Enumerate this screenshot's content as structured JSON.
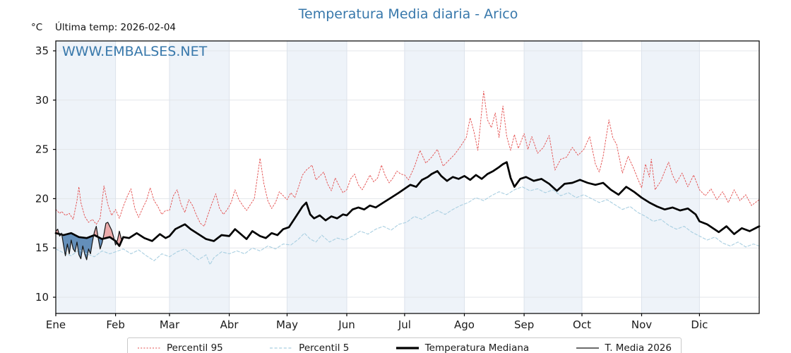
{
  "header": {
    "title": "Temperatura Media diaria - Arico",
    "units_label": "°C",
    "last_temp_label": "Última temp: 2026-02-04",
    "watermark": "WWW.EMBALSES.NET"
  },
  "colors": {
    "accent": "#3878ab",
    "p95": "#e34b4b",
    "p5": "#a9cfe1",
    "median": "#000000",
    "t2026": "#151515",
    "fill_above": "#ecacac",
    "fill_below": "#648fba",
    "band": "#eef3f9"
  },
  "legend": {
    "items": [
      {
        "label": "Percentil 95",
        "style": "red-dotted"
      },
      {
        "label": "Percentil 5",
        "style": "blue-dashed"
      },
      {
        "label": "Temperatura Mediana",
        "style": "black-thick"
      },
      {
        "label": "T. Media 2026",
        "style": "black-thin"
      }
    ]
  },
  "chart_data": {
    "type": "line",
    "title": "Temperatura Media diaria - Arico",
    "xlabel": "",
    "ylabel": "°C",
    "x_unit": "day_of_year",
    "xlim": [
      0,
      365
    ],
    "ylim": [
      8.35,
      36.0
    ],
    "y_ticks": [
      10,
      15,
      20,
      25,
      30,
      35
    ],
    "grid": true,
    "grid_color_h": "#e3e6e9",
    "grid_color_v": "#dce3ec",
    "band_color": "#eef3f9",
    "legend_position": "bottom",
    "months": [
      {
        "label": "Ene",
        "start": 0
      },
      {
        "label": "Feb",
        "start": 31
      },
      {
        "label": "Mar",
        "start": 59
      },
      {
        "label": "Abr",
        "start": 90
      },
      {
        "label": "May",
        "start": 120
      },
      {
        "label": "Jun",
        "start": 151
      },
      {
        "label": "Jul",
        "start": 181
      },
      {
        "label": "Ago",
        "start": 212
      },
      {
        "label": "Sep",
        "start": 243
      },
      {
        "label": "Oct",
        "start": 273
      },
      {
        "label": "Nov",
        "start": 304
      },
      {
        "label": "Dic",
        "start": 334
      }
    ],
    "fill": {
      "between": [
        "Temperatura Mediana",
        "T. Media 2026"
      ],
      "above_color": "#ecacac",
      "below_color": "#648fba"
    },
    "series": [
      {
        "id": "p95",
        "name": "Percentil 95",
        "color": "#e34b4b",
        "width": 0.9,
        "dash": "2 2.2",
        "days": [
          0,
          2,
          3,
          5,
          7,
          9,
          11,
          12,
          13,
          15,
          17,
          19,
          21,
          23,
          25,
          27,
          29,
          31,
          33,
          35,
          37,
          39,
          41,
          43,
          45,
          47,
          49,
          51,
          53,
          55,
          57,
          59,
          61,
          63,
          65,
          67,
          69,
          71,
          73,
          75,
          77,
          79,
          81,
          83,
          85,
          87,
          89,
          91,
          93,
          95,
          97,
          99,
          101,
          103,
          106,
          108,
          110,
          112,
          114,
          116,
          118,
          120,
          122,
          124,
          126,
          128,
          130,
          133,
          135,
          137,
          139,
          141,
          143,
          145,
          147,
          149,
          151,
          153,
          155,
          157,
          159,
          161,
          163,
          165,
          167,
          169,
          171,
          173,
          175,
          177,
          179,
          181,
          183,
          186,
          189,
          192,
          195,
          198,
          201,
          204,
          207,
          210,
          213,
          215,
          217,
          219,
          222,
          224,
          226,
          228,
          230,
          232,
          234,
          236,
          238,
          240,
          243,
          245,
          247,
          250,
          253,
          256,
          259,
          262,
          265,
          268,
          271,
          274,
          277,
          280,
          282,
          284,
          287,
          289,
          291,
          294,
          297,
          300,
          302,
          304,
          306,
          308,
          309,
          311,
          314,
          316,
          318,
          320,
          322,
          325,
          328,
          331,
          334,
          337,
          340,
          343,
          346,
          349,
          352,
          355,
          358,
          361,
          365
        ],
        "values": [
          18.9,
          18.5,
          18.7,
          18.3,
          18.5,
          17.9,
          19.8,
          21.2,
          19.6,
          18.2,
          17.6,
          17.9,
          17.4,
          18.0,
          21.3,
          19.4,
          18.3,
          18.9,
          18.0,
          19.2,
          20.2,
          21.0,
          19.0,
          18.1,
          19.0,
          19.8,
          21.1,
          19.8,
          19.2,
          18.4,
          18.8,
          18.8,
          20.3,
          20.9,
          19.4,
          18.6,
          19.9,
          19.3,
          18.3,
          17.5,
          17.2,
          18.4,
          19.5,
          20.5,
          19.0,
          18.4,
          18.9,
          19.6,
          20.9,
          19.9,
          19.3,
          18.8,
          19.4,
          20.0,
          24.1,
          21.5,
          19.8,
          19.0,
          19.6,
          20.7,
          20.3,
          19.9,
          20.6,
          20.1,
          21.2,
          22.4,
          22.9,
          23.4,
          21.9,
          22.3,
          22.7,
          21.5,
          20.8,
          22.1,
          21.3,
          20.6,
          20.9,
          22.0,
          22.5,
          21.4,
          20.9,
          21.6,
          22.4,
          21.7,
          22.1,
          23.4,
          22.3,
          21.6,
          22.1,
          22.8,
          22.5,
          22.4,
          21.9,
          23.2,
          24.9,
          23.6,
          24.2,
          25.0,
          23.3,
          23.9,
          24.5,
          25.3,
          26.2,
          28.2,
          26.8,
          24.9,
          30.9,
          28.0,
          27.2,
          28.7,
          26.2,
          29.4,
          26.3,
          24.9,
          26.5,
          25.1,
          26.6,
          25.0,
          26.3,
          24.6,
          25.2,
          26.4,
          22.9,
          24.0,
          24.2,
          25.2,
          24.4,
          25.0,
          26.3,
          23.5,
          22.7,
          24.3,
          28.0,
          26.2,
          25.5,
          22.6,
          24.3,
          23.0,
          22.0,
          21.1,
          23.5,
          22.2,
          24.0,
          20.9,
          21.8,
          22.8,
          23.7,
          22.4,
          21.6,
          22.6,
          21.2,
          22.4,
          20.9,
          20.3,
          21.0,
          19.9,
          20.7,
          19.6,
          20.9,
          19.8,
          20.4,
          19.3,
          19.9
        ]
      },
      {
        "id": "p5",
        "name": "Percentil 5",
        "color": "#a9cfe1",
        "width": 1.1,
        "dash": "4 2.6",
        "days": [
          0,
          4,
          8,
          12,
          16,
          20,
          24,
          28,
          31,
          35,
          39,
          43,
          47,
          51,
          55,
          59,
          63,
          67,
          70,
          74,
          78,
          80,
          82,
          86,
          90,
          94,
          98,
          102,
          106,
          110,
          114,
          118,
          122,
          126,
          129,
          132,
          135,
          138,
          142,
          146,
          150,
          154,
          158,
          162,
          166,
          170,
          174,
          178,
          182,
          186,
          190,
          194,
          198,
          202,
          206,
          210,
          214,
          218,
          222,
          226,
          230,
          234,
          238,
          242,
          246,
          250,
          254,
          258,
          262,
          266,
          270,
          274,
          278,
          282,
          286,
          290,
          294,
          298,
          302,
          306,
          310,
          314,
          318,
          322,
          326,
          330,
          334,
          338,
          342,
          346,
          350,
          354,
          358,
          362,
          365
        ],
        "values": [
          14.9,
          14.5,
          14.2,
          14.8,
          14.4,
          14.1,
          14.7,
          14.4,
          14.6,
          14.9,
          14.4,
          14.8,
          14.2,
          13.7,
          14.4,
          14.1,
          14.6,
          14.9,
          14.4,
          13.8,
          14.3,
          13.3,
          14.0,
          14.6,
          14.4,
          14.7,
          14.4,
          15.0,
          14.7,
          15.2,
          14.9,
          15.4,
          15.3,
          15.9,
          16.5,
          15.9,
          15.6,
          16.3,
          15.6,
          16.0,
          15.8,
          16.2,
          16.7,
          16.4,
          16.9,
          17.2,
          16.8,
          17.4,
          17.6,
          18.2,
          17.9,
          18.4,
          18.8,
          18.4,
          18.9,
          19.3,
          19.6,
          20.1,
          19.8,
          20.3,
          20.7,
          20.4,
          20.9,
          21.2,
          20.8,
          21.0,
          20.6,
          20.9,
          20.3,
          20.6,
          20.1,
          20.4,
          20.0,
          19.6,
          19.9,
          19.4,
          18.9,
          19.2,
          18.6,
          18.2,
          17.7,
          17.9,
          17.3,
          16.9,
          17.2,
          16.6,
          16.2,
          15.8,
          16.1,
          15.5,
          15.2,
          15.6,
          15.1,
          15.4,
          15.2
        ]
      },
      {
        "id": "mediana",
        "name": "Temperatura Mediana",
        "color": "#000000",
        "width": 2.7,
        "dash": null,
        "days": [
          0,
          4,
          8,
          12,
          16,
          20,
          24,
          28,
          31,
          33,
          35,
          38,
          42,
          46,
          50,
          54,
          57,
          59,
          62,
          67,
          70,
          74,
          78,
          82,
          86,
          90,
          93,
          96,
          99,
          102,
          106,
          109,
          112,
          115,
          118,
          121,
          124,
          128,
          130,
          132,
          134,
          137,
          140,
          143,
          146,
          149,
          151,
          154,
          157,
          160,
          163,
          166,
          170,
          174,
          178,
          181,
          184,
          187,
          190,
          193,
          195,
          198,
          200,
          203,
          206,
          209,
          212,
          215,
          218,
          221,
          224,
          227,
          230,
          232,
          234,
          236,
          238,
          241,
          244,
          248,
          252,
          256,
          260,
          264,
          268,
          272,
          276,
          280,
          284,
          288,
          292,
          296,
          300,
          304,
          308,
          312,
          316,
          320,
          324,
          328,
          332,
          334,
          338,
          341,
          344,
          348,
          352,
          356,
          360,
          365
        ],
        "values": [
          16.5,
          16.3,
          16.5,
          16.1,
          16.0,
          16.3,
          15.9,
          16.1,
          15.7,
          15.2,
          16.1,
          16.0,
          16.5,
          16.0,
          15.7,
          16.4,
          16.0,
          16.2,
          16.9,
          17.4,
          16.9,
          16.4,
          15.9,
          15.7,
          16.3,
          16.2,
          16.9,
          16.4,
          15.9,
          16.7,
          16.2,
          16.0,
          16.5,
          16.3,
          16.9,
          17.1,
          18.0,
          19.2,
          19.6,
          18.4,
          18.0,
          18.3,
          17.8,
          18.2,
          18.0,
          18.4,
          18.3,
          18.9,
          19.1,
          18.9,
          19.3,
          19.1,
          19.6,
          20.1,
          20.6,
          21.0,
          21.4,
          21.2,
          21.9,
          22.2,
          22.5,
          22.8,
          22.3,
          21.8,
          22.2,
          22.0,
          22.3,
          21.9,
          22.4,
          22.0,
          22.5,
          22.8,
          23.2,
          23.5,
          23.7,
          22.1,
          21.2,
          22.0,
          22.2,
          21.8,
          22.0,
          21.5,
          20.8,
          21.5,
          21.6,
          21.9,
          21.6,
          21.4,
          21.6,
          20.9,
          20.4,
          21.2,
          20.7,
          20.1,
          19.6,
          19.2,
          18.9,
          19.1,
          18.8,
          19.0,
          18.4,
          17.7,
          17.4,
          17.0,
          16.6,
          17.2,
          16.4,
          17.0,
          16.7,
          17.2
        ]
      },
      {
        "id": "media2026",
        "name": "T. Media 2026",
        "color": "#151515",
        "width": 1.2,
        "dash": null,
        "days": [
          0,
          1,
          2,
          3,
          4,
          5,
          6,
          7,
          8,
          9,
          10,
          11,
          12,
          13,
          14,
          15,
          16,
          17,
          18,
          19,
          20,
          21,
          22,
          23,
          24,
          25,
          26,
          27,
          28,
          29,
          30,
          31,
          32,
          33,
          34
        ],
        "values": [
          16.7,
          16.9,
          16.2,
          16.5,
          15.3,
          14.2,
          15.4,
          14.4,
          15.8,
          14.9,
          14.6,
          15.6,
          14.3,
          13.9,
          15.2,
          14.4,
          13.8,
          14.9,
          14.4,
          15.6,
          16.6,
          17.2,
          16.0,
          14.9,
          15.5,
          16.4,
          17.5,
          17.6,
          17.2,
          16.8,
          16.1,
          15.3,
          15.8,
          16.7,
          15.9
        ]
      }
    ]
  }
}
